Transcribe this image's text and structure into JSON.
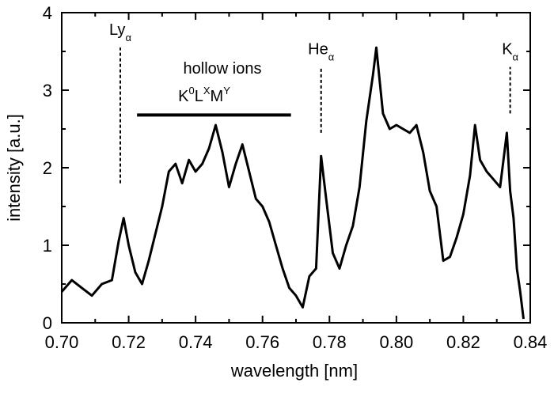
{
  "chart_data": {
    "type": "line",
    "title": "",
    "xlabel": "wavelength [nm]",
    "ylabel": "intensity [a.u.]",
    "xlim": [
      0.7,
      0.84
    ],
    "ylim": [
      0,
      4
    ],
    "x_ticks": [
      "0.70",
      "0.72",
      "0.74",
      "0.76",
      "0.78",
      "0.80",
      "0.82",
      "0.84"
    ],
    "y_ticks": [
      "0",
      "1",
      "2",
      "3",
      "4"
    ],
    "grid": false,
    "line_color": "#000000",
    "series": [
      {
        "x": [
          0.7,
          0.703,
          0.706,
          0.709,
          0.712,
          0.715,
          0.717,
          0.7185,
          0.72,
          0.722,
          0.724,
          0.726,
          0.728,
          0.73,
          0.732,
          0.734,
          0.736,
          0.738,
          0.74,
          0.742,
          0.744,
          0.746,
          0.748,
          0.75,
          0.752,
          0.754,
          0.756,
          0.758,
          0.76,
          0.762,
          0.764,
          0.766,
          0.768,
          0.77,
          0.772,
          0.774,
          0.776,
          0.7775,
          0.779,
          0.781,
          0.783,
          0.785,
          0.787,
          0.789,
          0.791,
          0.793,
          0.794,
          0.796,
          0.798,
          0.8,
          0.802,
          0.804,
          0.806,
          0.808,
          0.81,
          0.812,
          0.814,
          0.816,
          0.818,
          0.82,
          0.822,
          0.8235,
          0.825,
          0.827,
          0.829,
          0.831,
          0.833,
          0.834,
          0.835,
          0.836,
          0.837,
          0.838
        ],
        "values": [
          0.4,
          0.55,
          0.45,
          0.35,
          0.5,
          0.55,
          1.05,
          1.35,
          1.0,
          0.65,
          0.5,
          0.8,
          1.15,
          1.5,
          1.95,
          2.05,
          1.8,
          2.1,
          1.95,
          2.05,
          2.25,
          2.55,
          2.2,
          1.75,
          2.05,
          2.3,
          1.95,
          1.6,
          1.5,
          1.3,
          1.0,
          0.7,
          0.45,
          0.35,
          0.2,
          0.6,
          0.7,
          2.15,
          1.6,
          0.9,
          0.7,
          1.0,
          1.25,
          1.75,
          2.6,
          3.2,
          3.55,
          2.7,
          2.5,
          2.55,
          2.5,
          2.45,
          2.55,
          2.2,
          1.7,
          1.5,
          0.8,
          0.85,
          1.1,
          1.4,
          1.9,
          2.55,
          2.1,
          1.95,
          1.85,
          1.75,
          2.45,
          1.7,
          1.35,
          0.7,
          0.4,
          0.05
        ]
      }
    ],
    "annotations": [
      {
        "base": "Ly",
        "sub": "α",
        "x": 0.7175,
        "y_from": 1.8,
        "y_to": 3.55
      },
      {
        "base": "He",
        "sub": "α",
        "x": 0.7775,
        "y_from": 2.45,
        "y_to": 3.3
      },
      {
        "base": "K",
        "sub": "α",
        "x": 0.834,
        "y_from": 2.7,
        "y_to": 3.3
      }
    ],
    "hollow_label": "hollow ions",
    "hollow_formula": {
      "k": "K",
      "k_sup": "0",
      "l": "L",
      "l_sup": "X",
      "m": "M",
      "m_sup": "Y"
    },
    "hollow_bar": {
      "x_from": 0.7225,
      "x_to": 0.7685,
      "y": 2.68
    }
  }
}
